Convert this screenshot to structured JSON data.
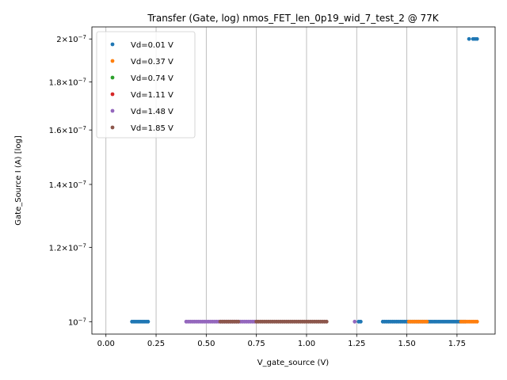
{
  "chart_data": {
    "type": "scatter",
    "title": "Transfer (Gate, log) nmos_FET_len_0p19_wid_7_test_2 @ 77K",
    "xlabel": "V_gate_source (V)",
    "ylabel": "Gate_Source I (A) [log]",
    "xlim": [
      -0.07,
      1.94
    ],
    "ylim": [
      9.7e-08,
      2.06e-07
    ],
    "yscale": "log",
    "grid": "vertical",
    "legend": "top-left",
    "x_ticks": [
      {
        "value": 0.0,
        "label": "0.00"
      },
      {
        "value": 0.25,
        "label": "0.25"
      },
      {
        "value": 0.5,
        "label": "0.50"
      },
      {
        "value": 0.75,
        "label": "0.75"
      },
      {
        "value": 1.0,
        "label": "1.00"
      },
      {
        "value": 1.25,
        "label": "1.25"
      },
      {
        "value": 1.5,
        "label": "1.50"
      },
      {
        "value": 1.75,
        "label": "1.75"
      }
    ],
    "y_ticks": [
      {
        "value": 1e-07,
        "mantissa": "10",
        "exponent": "−7"
      },
      {
        "value": 1.2e-07,
        "mantissa": "1.2×10",
        "exponent": "−7"
      },
      {
        "value": 1.4e-07,
        "mantissa": "1.4×10",
        "exponent": "−7"
      },
      {
        "value": 1.6e-07,
        "mantissa": "1.6×10",
        "exponent": "−7"
      },
      {
        "value": 1.8e-07,
        "mantissa": "1.8×10",
        "exponent": "−7"
      },
      {
        "value": 2e-07,
        "mantissa": "2×10",
        "exponent": "−7"
      }
    ],
    "series": [
      {
        "name": "Vd=0.01 V",
        "color": "#1f77b4",
        "segments": [
          {
            "x_start": 0.13,
            "x_end": 0.21,
            "step": 0.01,
            "y": 1e-07
          },
          {
            "x_start": 1.26,
            "x_end": 1.27,
            "step": 0.01,
            "y": 1e-07
          },
          {
            "x_start": 1.38,
            "x_end": 1.79,
            "step": 0.01,
            "y": 1e-07
          }
        ],
        "points": [
          [
            1.81,
            2e-07
          ],
          [
            1.83,
            2e-07
          ],
          [
            1.84,
            2e-07
          ],
          [
            1.85,
            2e-07
          ]
        ]
      },
      {
        "name": "Vd=0.37 V",
        "color": "#ff7f0e",
        "segments": [
          {
            "x_start": 1.51,
            "x_end": 1.6,
            "step": 0.01,
            "y": 1e-07
          },
          {
            "x_start": 1.77,
            "x_end": 1.85,
            "step": 0.01,
            "y": 1e-07
          }
        ],
        "points": []
      },
      {
        "name": "Vd=0.74 V",
        "color": "#2ca02c",
        "segments": [],
        "points": []
      },
      {
        "name": "Vd=1.11 V",
        "color": "#d62728",
        "segments": [],
        "points": []
      },
      {
        "name": "Vd=1.48 V",
        "color": "#9467bd",
        "segments": [
          {
            "x_start": 0.4,
            "x_end": 0.75,
            "step": 0.01,
            "y": 1e-07
          }
        ],
        "points": [
          [
            1.24,
            1e-07
          ]
        ]
      },
      {
        "name": "Vd=1.85 V",
        "color": "#8c564b",
        "segments": [
          {
            "x_start": 0.57,
            "x_end": 0.66,
            "step": 0.01,
            "y": 1e-07
          },
          {
            "x_start": 0.75,
            "x_end": 1.1,
            "step": 0.01,
            "y": 1e-07
          }
        ],
        "points": []
      }
    ]
  }
}
